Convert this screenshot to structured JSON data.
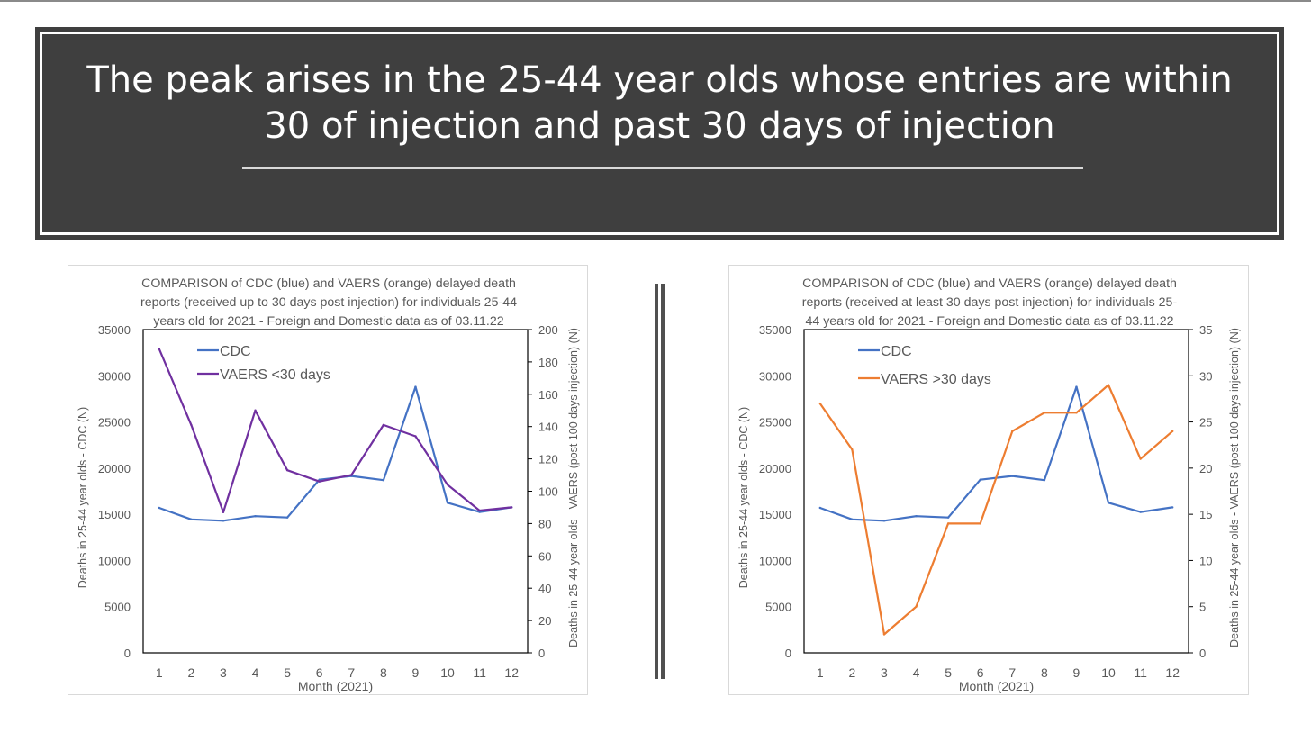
{
  "slide": {
    "title": "The peak arises in the 25-44 year olds whose entries are within 30 of injection and past 30 days of injection"
  },
  "chart_data": [
    {
      "type": "line",
      "title_lines": [
        "COMPARISON of CDC (blue) and VAERS (orange) delayed death",
        "reports (received up to 30 days post injection) for individuals 25-44",
        "years old for 2021 - Foreign and Domestic data as of 03.11.22"
      ],
      "xlabel": "Month (2021)",
      "ylabel_left": "Deaths in 25-44 year olds - CDC (N)",
      "ylabel_right": "Deaths in 25-44 year olds - VAERS (post 100 days injection) (N)",
      "x": [
        1,
        2,
        3,
        4,
        5,
        6,
        7,
        8,
        9,
        10,
        11,
        12
      ],
      "y_left_lim": [
        0,
        35000
      ],
      "y_left_ticks": [
        0,
        5000,
        10000,
        15000,
        20000,
        25000,
        30000,
        35000
      ],
      "y_right_lim": [
        0,
        200
      ],
      "y_right_ticks": [
        0,
        20,
        40,
        60,
        80,
        100,
        120,
        140,
        160,
        180,
        200
      ],
      "legend_position": "top-left",
      "grid": false,
      "series": [
        {
          "name": "CDC",
          "axis": "left",
          "color": "#4472C4",
          "values": [
            15700,
            14450,
            14300,
            14800,
            14650,
            18750,
            19150,
            18700,
            28800,
            16250,
            15250,
            15750
          ]
        },
        {
          "name": "VAERS <30 days",
          "axis": "right",
          "color": "#7030A0",
          "values": [
            188,
            141,
            87,
            150,
            113,
            106,
            110,
            141,
            134,
            104,
            88,
            90
          ]
        }
      ]
    },
    {
      "type": "line",
      "title_lines": [
        "COMPARISON of CDC (blue) and VAERS (orange) delayed death",
        "reports (received at least 30 days post injection) for individuals 25-",
        "44 years old for 2021 - Foreign and Domestic data as of 03.11.22"
      ],
      "xlabel": "Month (2021)",
      "ylabel_left": "Deaths in 25-44 year olds - CDC (N)",
      "ylabel_right": "Deaths in 25-44 year olds - VAERS (post 100 days injection) (N)",
      "x": [
        1,
        2,
        3,
        4,
        5,
        6,
        7,
        8,
        9,
        10,
        11,
        12
      ],
      "y_left_lim": [
        0,
        35000
      ],
      "y_left_ticks": [
        0,
        5000,
        10000,
        15000,
        20000,
        25000,
        30000,
        35000
      ],
      "y_right_lim": [
        0,
        35
      ],
      "y_right_ticks": [
        0,
        5,
        10,
        15,
        20,
        25,
        30,
        35
      ],
      "legend_position": "top-left",
      "grid": false,
      "series": [
        {
          "name": "CDC",
          "axis": "left",
          "color": "#4472C4",
          "values": [
            15700,
            14450,
            14300,
            14800,
            14650,
            18750,
            19150,
            18700,
            28800,
            16250,
            15250,
            15750
          ]
        },
        {
          "name": "VAERS >30 days",
          "axis": "right",
          "color": "#ED7D31",
          "values": [
            27,
            22,
            2,
            5,
            14,
            14,
            24,
            26,
            26,
            29,
            21,
            24
          ]
        }
      ]
    }
  ]
}
